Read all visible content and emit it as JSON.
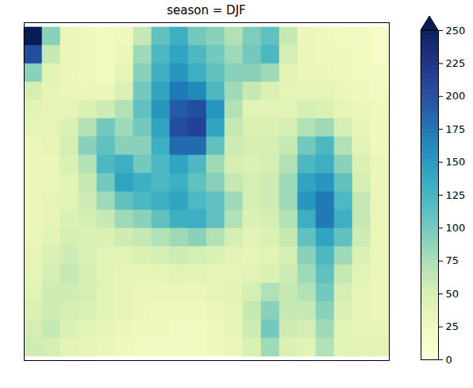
{
  "chart_data": {
    "type": "heatmap",
    "title": "season = DJF",
    "tick_labels": false,
    "color": "YlGnBu",
    "cells": [
      [
        280,
        90,
        30,
        25,
        20,
        25,
        60,
        110,
        130,
        100,
        90,
        70,
        95,
        110,
        60,
        30,
        25,
        20,
        20,
        15
      ],
      [
        200,
        60,
        30,
        25,
        20,
        30,
        80,
        120,
        140,
        120,
        100,
        80,
        100,
        120,
        50,
        30,
        25,
        25,
        20,
        15
      ],
      [
        90,
        40,
        30,
        25,
        20,
        35,
        90,
        130,
        150,
        130,
        110,
        90,
        90,
        80,
        40,
        30,
        30,
        25,
        20,
        20
      ],
      [
        50,
        35,
        30,
        30,
        30,
        45,
        100,
        140,
        170,
        160,
        120,
        80,
        60,
        45,
        35,
        35,
        35,
        30,
        25,
        20
      ],
      [
        40,
        35,
        35,
        45,
        55,
        70,
        110,
        150,
        190,
        200,
        150,
        70,
        40,
        40,
        40,
        50,
        45,
        35,
        30,
        25
      ],
      [
        35,
        35,
        45,
        70,
        100,
        80,
        100,
        140,
        200,
        210,
        140,
        60,
        45,
        45,
        50,
        70,
        80,
        50,
        35,
        25
      ],
      [
        30,
        35,
        50,
        90,
        110,
        90,
        90,
        130,
        180,
        180,
        110,
        55,
        50,
        50,
        60,
        100,
        120,
        70,
        40,
        25
      ],
      [
        30,
        30,
        45,
        70,
        120,
        130,
        100,
        120,
        140,
        120,
        80,
        50,
        45,
        50,
        70,
        120,
        130,
        90,
        45,
        30
      ],
      [
        30,
        30,
        40,
        60,
        100,
        140,
        130,
        120,
        130,
        110,
        90,
        60,
        50,
        55,
        80,
        140,
        150,
        110,
        50,
        30
      ],
      [
        30,
        35,
        40,
        55,
        80,
        110,
        120,
        130,
        140,
        120,
        110,
        80,
        50,
        55,
        80,
        150,
        170,
        120,
        60,
        30
      ],
      [
        30,
        35,
        45,
        50,
        60,
        80,
        90,
        110,
        130,
        130,
        110,
        70,
        45,
        50,
        70,
        130,
        170,
        130,
        60,
        30
      ],
      [
        30,
        40,
        50,
        45,
        45,
        55,
        60,
        70,
        80,
        90,
        70,
        50,
        40,
        45,
        60,
        110,
        140,
        110,
        55,
        30
      ],
      [
        35,
        45,
        55,
        45,
        40,
        40,
        45,
        50,
        55,
        50,
        45,
        40,
        35,
        40,
        50,
        90,
        120,
        80,
        45,
        30
      ],
      [
        35,
        50,
        60,
        50,
        40,
        35,
        35,
        35,
        40,
        40,
        35,
        35,
        40,
        45,
        55,
        80,
        110,
        60,
        40,
        30
      ],
      [
        40,
        55,
        55,
        50,
        40,
        35,
        30,
        30,
        30,
        30,
        35,
        40,
        50,
        70,
        60,
        70,
        100,
        50,
        35,
        30
      ],
      [
        45,
        55,
        50,
        45,
        40,
        35,
        30,
        25,
        25,
        25,
        30,
        35,
        60,
        90,
        60,
        60,
        90,
        45,
        35,
        30
      ],
      [
        50,
        60,
        45,
        40,
        35,
        30,
        25,
        25,
        20,
        20,
        25,
        35,
        55,
        100,
        55,
        50,
        80,
        40,
        35,
        35
      ],
      [
        55,
        50,
        40,
        35,
        30,
        25,
        20,
        20,
        20,
        20,
        25,
        30,
        45,
        80,
        45,
        40,
        70,
        40,
        40,
        40
      ]
    ],
    "colorbar": {
      "range": [
        0,
        250
      ],
      "ticks": [
        0,
        25,
        50,
        75,
        100,
        125,
        150,
        175,
        200,
        225,
        250
      ]
    }
  }
}
